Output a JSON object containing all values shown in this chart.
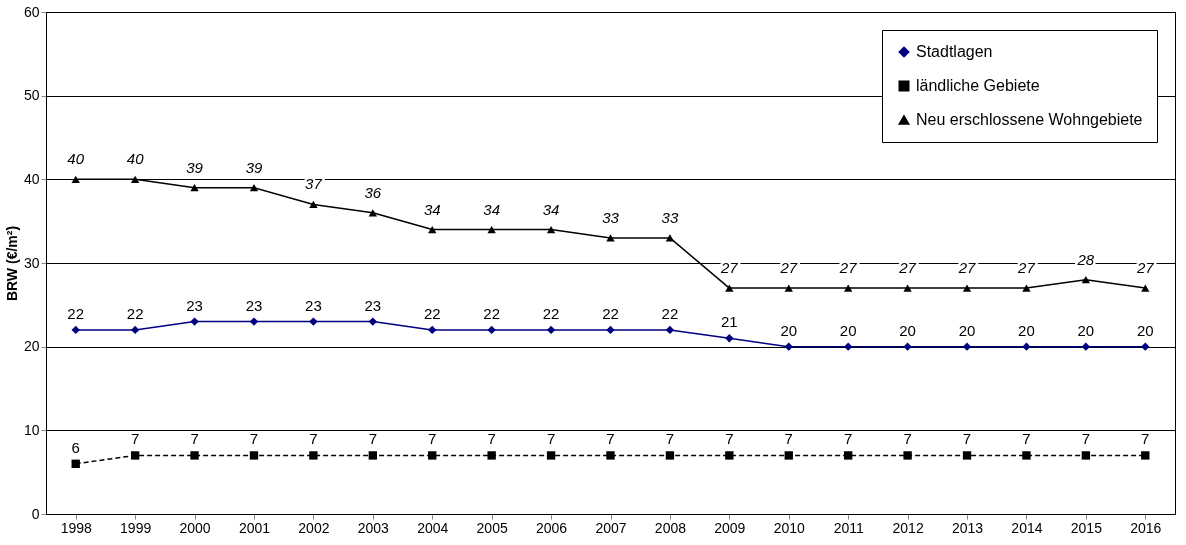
{
  "chart_data": {
    "type": "line",
    "ylabel": "BRW (€/m²)",
    "categories": [
      "1998",
      "1999",
      "2000",
      "2001",
      "2002",
      "2003",
      "2004",
      "2005",
      "2006",
      "2007",
      "2008",
      "2009",
      "2010",
      "2011",
      "2012",
      "2013",
      "2014",
      "2015",
      "2016"
    ],
    "series": [
      {
        "name": "Stadtlagen",
        "color": "#00007f",
        "marker": "diamond",
        "line_style": "solid",
        "values": [
          22,
          22,
          23,
          23,
          23,
          23,
          22,
          22,
          22,
          22,
          22,
          21,
          20,
          20,
          20,
          20,
          20,
          20,
          20
        ]
      },
      {
        "name": "ländliche Gebiete",
        "color": "#000000",
        "marker": "square",
        "line_style": "dashed",
        "values": [
          6,
          7,
          7,
          7,
          7,
          7,
          7,
          7,
          7,
          7,
          7,
          7,
          7,
          7,
          7,
          7,
          7,
          7,
          7
        ]
      },
      {
        "name": "Neu erschlossene Wohngebiete",
        "color": "#000000",
        "marker": "triangle",
        "line_style": "solid",
        "values": [
          40,
          40,
          39,
          39,
          37,
          36,
          34,
          34,
          34,
          33,
          33,
          27,
          27,
          27,
          27,
          27,
          27,
          28,
          27
        ]
      }
    ],
    "ylim": [
      0,
      60
    ],
    "yticks": [
      0,
      10,
      20,
      30,
      40,
      50,
      60
    ],
    "grid": "y",
    "legend": "top right",
    "data_labels": true
  }
}
